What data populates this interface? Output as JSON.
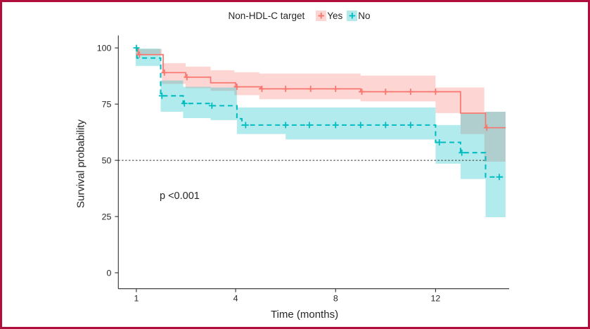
{
  "figure": {
    "border_color": "#B00E3D",
    "background_color": "#FFFFFF"
  },
  "legend": {
    "title": "Non-HDL-C target",
    "items": [
      {
        "label": "Yes",
        "marker": "+",
        "line_color": "#F8766D",
        "swatch_color": "#FBD6D3"
      },
      {
        "label": "No",
        "marker": "+",
        "line_color": "#00BDC2",
        "swatch_color": "#B2EAEC"
      }
    ]
  },
  "annotation": {
    "p_value": "p <0.001"
  },
  "axes": {
    "x_label": "Time (months)",
    "y_label": "Survival probability",
    "x_tick_labels": [
      "1",
      "4",
      "8",
      "12"
    ],
    "y_tick_labels": [
      "0",
      "25",
      "50",
      "75",
      "100"
    ],
    "axis_color": "#2b2b2b"
  },
  "chart_data": {
    "type": "line",
    "subtype": "kaplan-meier-step-curves",
    "title": "",
    "legend_title": "Non-HDL-C target",
    "xlabel": "Time (months)",
    "ylabel": "Survival probability",
    "x_ticks": [
      1,
      4,
      8,
      12
    ],
    "y_ticks": [
      0,
      25,
      50,
      75,
      100
    ],
    "ylim": [
      0,
      100
    ],
    "xlim_months": [
      0,
      14.8
    ],
    "grid": false,
    "legend_position": "top",
    "p_value_text": "p <0.001",
    "median_reference_line": {
      "y": 50,
      "x_start_month": 0,
      "x_end_month": 14,
      "style": "dotted",
      "color": "#333333"
    },
    "series": [
      {
        "name": "Yes",
        "color": "#F8766D",
        "line_style": "solid",
        "band_fill": "rgba(248,118,109,0.30)",
        "start": [
          0,
          100
        ],
        "steps": [
          [
            0.1,
            97
          ],
          [
            1.1,
            89
          ],
          [
            2,
            87
          ],
          [
            3,
            84.5
          ],
          [
            4,
            82.7
          ],
          [
            5,
            81.8
          ],
          [
            9,
            80.5
          ],
          [
            13,
            71
          ],
          [
            14,
            64.5
          ]
        ],
        "end_month": 14.8,
        "censor_marks_months": [
          0.15,
          1.15,
          2.05,
          4.05,
          5.05,
          6,
          7,
          8,
          9.05,
          10,
          11,
          12,
          14.05
        ],
        "confidence_band": [
          {
            "from": 0,
            "to": 1.05,
            "upper": 99.5,
            "lower": 96.8
          },
          {
            "from": 1.05,
            "to": 2,
            "upper": 93.2,
            "lower": 84
          },
          {
            "from": 2,
            "to": 3,
            "upper": 91.7,
            "lower": 82.1
          },
          {
            "from": 3,
            "to": 3.95,
            "upper": 90.1,
            "lower": 80.9
          },
          {
            "from": 3.95,
            "to": 4.95,
            "upper": 89.2,
            "lower": 79
          },
          {
            "from": 4.95,
            "to": 9,
            "upper": 88.6,
            "lower": 77.2
          },
          {
            "from": 9,
            "to": 12,
            "upper": 87.7,
            "lower": 76.2
          },
          {
            "from": 12,
            "to": 13,
            "upper": 82.4,
            "lower": 71
          },
          {
            "from": 13,
            "to": 13.95,
            "upper": 82.4,
            "lower": 61.7
          },
          {
            "from": 13.95,
            "to": 14.8,
            "upper": 71.6,
            "lower": 49.4
          }
        ]
      },
      {
        "name": "No",
        "color": "#00BDC2",
        "line_style": "dashed",
        "band_fill": "rgba(0,189,194,0.30)",
        "start": [
          0,
          100
        ],
        "steps": [
          [
            0.05,
            95.5
          ],
          [
            1,
            78.7
          ],
          [
            1.9,
            75.3
          ],
          [
            3,
            74.3
          ],
          [
            4.05,
            68.5
          ],
          [
            4.25,
            65.7
          ],
          [
            12,
            58
          ],
          [
            13,
            53.4
          ],
          [
            14,
            42.6
          ]
        ],
        "end_month": 14.8,
        "censor_marks_months": [
          0.03,
          1.05,
          1.95,
          3.05,
          4.4,
          6,
          6.95,
          8,
          9,
          10,
          11,
          12.15,
          13.05,
          14.55
        ],
        "confidence_band": [
          {
            "from": 0,
            "to": 1,
            "upper": 99.7,
            "lower": 92
          },
          {
            "from": 1,
            "to": 1.9,
            "upper": 85.5,
            "lower": 71.6
          },
          {
            "from": 1.9,
            "to": 3,
            "upper": 82.7,
            "lower": 68.8
          },
          {
            "from": 3,
            "to": 4.05,
            "upper": 82.4,
            "lower": 67.9
          },
          {
            "from": 4.05,
            "to": 6,
            "upper": 73.5,
            "lower": 61.7
          },
          {
            "from": 6,
            "to": 12,
            "upper": 73.5,
            "lower": 59.3
          },
          {
            "from": 12,
            "to": 13,
            "upper": 65.7,
            "lower": 48.5
          },
          {
            "from": 13,
            "to": 14,
            "upper": 71,
            "lower": 41.7
          },
          {
            "from": 14,
            "to": 14.8,
            "upper": 71.6,
            "lower": 24.7
          }
        ]
      }
    ]
  }
}
